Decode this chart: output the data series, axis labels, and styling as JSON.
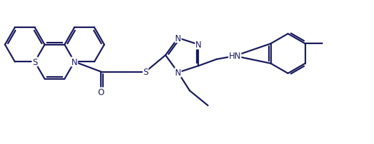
{
  "bg_color": "#ffffff",
  "line_color": "#1a1a5e",
  "line_width": 1.6,
  "font_size": 8.5,
  "figsize": [
    5.34,
    2.07
  ],
  "dpi": 100,
  "xlim": [
    -0.5,
    10.8
  ],
  "ylim": [
    0.0,
    4.1
  ]
}
